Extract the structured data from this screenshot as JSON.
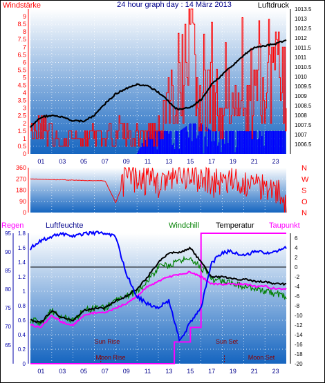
{
  "header": {
    "left_title": "Windstärke",
    "center_title": "24 hour graph day : 14 März 2013",
    "right_title": "Luftdruck"
  },
  "colors": {
    "wind": "#ff0000",
    "gust": "#0000ff",
    "pressure": "#000000",
    "humidity": "#0000ff",
    "temperature": "#000000",
    "windchill": "#008000",
    "dewpoint": "#ff00ff",
    "rain": "#ff00ff",
    "panel_top": "#ffffff",
    "panel_bottom": "#1565c0",
    "axis_wind": "#ff0000",
    "axis_left_bottom": "#0000aa",
    "axis_right_bottom": "#000000"
  },
  "chart_data": [
    {
      "type": "line",
      "panel": "wind_pressure",
      "ylabel_left": "Windstärke",
      "ylabel_right": "Luftdruck",
      "ylim_left": [
        0,
        9.5
      ],
      "yticks_left": [
        "0",
        "0.5",
        "1",
        "1.5",
        "2",
        "2.5",
        "3",
        "3.5",
        "4",
        "4.5",
        "5",
        "5.5",
        "6",
        "6.5",
        "7",
        "7.5",
        "8",
        "8.5",
        "9"
      ],
      "ylim_right": [
        1006,
        1013.5
      ],
      "yticks_right": [
        "1006.5",
        "1007",
        "1007.5",
        "1008",
        "1008.5",
        "1009",
        "1009.5",
        "1010",
        "1010.5",
        "1011",
        "1011.5",
        "1012",
        "1012.5",
        "1013",
        "1013.5"
      ],
      "xlim": [
        0,
        24
      ],
      "xticks": [
        "01",
        "03",
        "05",
        "07",
        "09",
        "11",
        "13",
        "15",
        "17",
        "19",
        "21",
        "23"
      ],
      "series": [
        {
          "key": "pressure",
          "x": [
            0,
            1,
            2,
            3,
            4,
            5,
            6,
            7,
            8,
            9,
            10,
            11,
            12,
            13,
            13.5,
            14,
            15,
            16,
            17,
            18,
            19,
            20,
            21,
            22,
            23,
            24
          ],
          "values": [
            1007.4,
            1007.9,
            1008.0,
            1007.9,
            1007.7,
            1007.7,
            1008.0,
            1008.6,
            1009.1,
            1009.4,
            1009.6,
            1009.5,
            1009.2,
            1008.7,
            1008.4,
            1008.3,
            1008.4,
            1008.8,
            1009.6,
            1010.1,
            1010.6,
            1011.1,
            1011.5,
            1011.6,
            1011.7,
            1011.9
          ]
        },
        {
          "key": "wind",
          "x": [
            0,
            1,
            2,
            3,
            4,
            5,
            6,
            7,
            8,
            9,
            10,
            11,
            12,
            13,
            14,
            15,
            16,
            17,
            18,
            19,
            20,
            21,
            22,
            23,
            24
          ],
          "values": [
            1.5,
            2,
            1.5,
            0.5,
            1.5,
            1,
            1.5,
            1,
            2,
            1.5,
            1.5,
            1.5,
            2,
            4,
            5.5,
            9,
            4,
            5.5,
            2,
            3,
            3.5,
            4,
            5.5,
            6,
            5.5
          ]
        },
        {
          "key": "gust",
          "x": [
            0,
            1,
            2,
            3,
            4,
            5,
            6,
            7,
            8,
            9,
            10,
            11,
            12,
            13,
            14,
            15,
            16,
            17,
            18,
            19,
            20,
            21,
            22,
            23,
            24
          ],
          "values": [
            0,
            0,
            0,
            0,
            0,
            0,
            0,
            0,
            0,
            0,
            0,
            1.5,
            1.5,
            1.5,
            1.5,
            2,
            2,
            1.5,
            1.5,
            1.5,
            1.5,
            1.5,
            1.5,
            1.5,
            1.5
          ]
        }
      ]
    },
    {
      "type": "line",
      "panel": "wind_direction",
      "ylim": [
        0,
        360
      ],
      "yticks": [
        "0",
        "90",
        "180",
        "270",
        "360"
      ],
      "direction_labels": [
        "N",
        "W",
        "S",
        "O",
        "N"
      ],
      "xlim": [
        0,
        24
      ],
      "series": [
        {
          "key": "direction",
          "x": [
            0,
            2,
            4,
            6,
            7,
            8,
            9,
            10,
            11,
            12,
            13,
            14,
            15,
            16,
            17,
            18,
            19,
            20,
            21,
            22,
            23,
            24
          ],
          "values": [
            270,
            265,
            260,
            255,
            255,
            80,
            300,
            280,
            260,
            240,
            250,
            270,
            260,
            280,
            250,
            240,
            230,
            240,
            220,
            230,
            200,
            40
          ]
        }
      ]
    },
    {
      "type": "line",
      "panel": "weather",
      "legend": [
        "Regen",
        "Luftfeuchte",
        "Windchill",
        "Temperatur",
        "Taupunkt"
      ],
      "ylim_left_rain": [
        0,
        1.8
      ],
      "yticks_left_rain": [
        "0",
        "0.2",
        "0.4",
        "0.6",
        "0.8",
        "1",
        "1.2",
        "1.4",
        "1.6",
        "1.8"
      ],
      "ylim_left_humidity": [
        60,
        95
      ],
      "yticks_left_humidity": [
        "65",
        "70",
        "75",
        "80",
        "85",
        "90",
        "95"
      ],
      "ylim_right": [
        -20,
        7
      ],
      "yticks_right": [
        "6",
        "4",
        "2",
        "0",
        "-2",
        "-4",
        "-6",
        "-8",
        "-10",
        "-12",
        "-14",
        "-16",
        "-18",
        "-20"
      ],
      "xlim": [
        0,
        24
      ],
      "annotations": [
        "Sun Rise",
        "Moon Rise",
        "Sun Set",
        "Moon Set"
      ],
      "series": [
        {
          "key": "temperature",
          "x": [
            0,
            1,
            2,
            3,
            4,
            5,
            6,
            7,
            8,
            9,
            10,
            11,
            12,
            13,
            14,
            15,
            16,
            17,
            18,
            19,
            20,
            21,
            22,
            23,
            24
          ],
          "values": [
            -11,
            -11.5,
            -9,
            -10.5,
            -11,
            -9,
            -8.5,
            -8.5,
            -7,
            -6,
            -4.5,
            -2,
            1,
            3,
            3,
            4,
            1,
            -2,
            -2,
            -2.5,
            -2.5,
            -3,
            -3,
            -3.5,
            -3.5
          ]
        },
        {
          "key": "windchill",
          "x": [
            0,
            1,
            2,
            3,
            4,
            5,
            6,
            7,
            8,
            9,
            10,
            11,
            12,
            13,
            14,
            15,
            16,
            17,
            18,
            19,
            20,
            21,
            22,
            23,
            24
          ],
          "values": [
            -11,
            -11.5,
            -9,
            -10.5,
            -11,
            -9,
            -8.5,
            -8.5,
            -7,
            -6,
            -5,
            -3,
            0,
            0.5,
            1,
            2,
            0,
            -2.5,
            -3,
            -3.5,
            -4,
            -4.5,
            -5,
            -5.5,
            -6
          ]
        },
        {
          "key": "dewpoint",
          "x": [
            0,
            1,
            2,
            3,
            4,
            5,
            6,
            7,
            8,
            9,
            10,
            11,
            12,
            13,
            14,
            15,
            16,
            17,
            18,
            19,
            20,
            21,
            22,
            23,
            24
          ],
          "values": [
            -12,
            -12.5,
            -10,
            -11.5,
            -12,
            -10,
            -9.5,
            -9.5,
            -8.5,
            -7.5,
            -6,
            -4,
            -3,
            -2,
            -1.5,
            -1,
            -2,
            -3.5,
            -3.5,
            -3.5,
            -3.5,
            -4,
            -4,
            -4.5,
            -4.5
          ]
        },
        {
          "key": "humidity",
          "x": [
            0,
            1,
            2,
            3,
            4,
            5,
            6,
            7,
            8,
            9,
            10,
            11,
            12,
            13,
            14,
            15,
            16,
            17,
            18,
            19,
            20,
            21,
            22,
            23,
            24
          ],
          "values": [
            91,
            93,
            94,
            95,
            94,
            95,
            95,
            95,
            94,
            84,
            78,
            76,
            75,
            77,
            66,
            71,
            75,
            87,
            90,
            90,
            89,
            90,
            90,
            90,
            91
          ]
        },
        {
          "key": "rain",
          "x": [
            0,
            11,
            12,
            13,
            13.5,
            14,
            15,
            15.5,
            16,
            17,
            24
          ],
          "values": [
            0,
            0,
            0,
            0,
            0.3,
            0.3,
            0.5,
            0.5,
            1.8,
            1.8,
            1.8
          ]
        }
      ]
    }
  ]
}
